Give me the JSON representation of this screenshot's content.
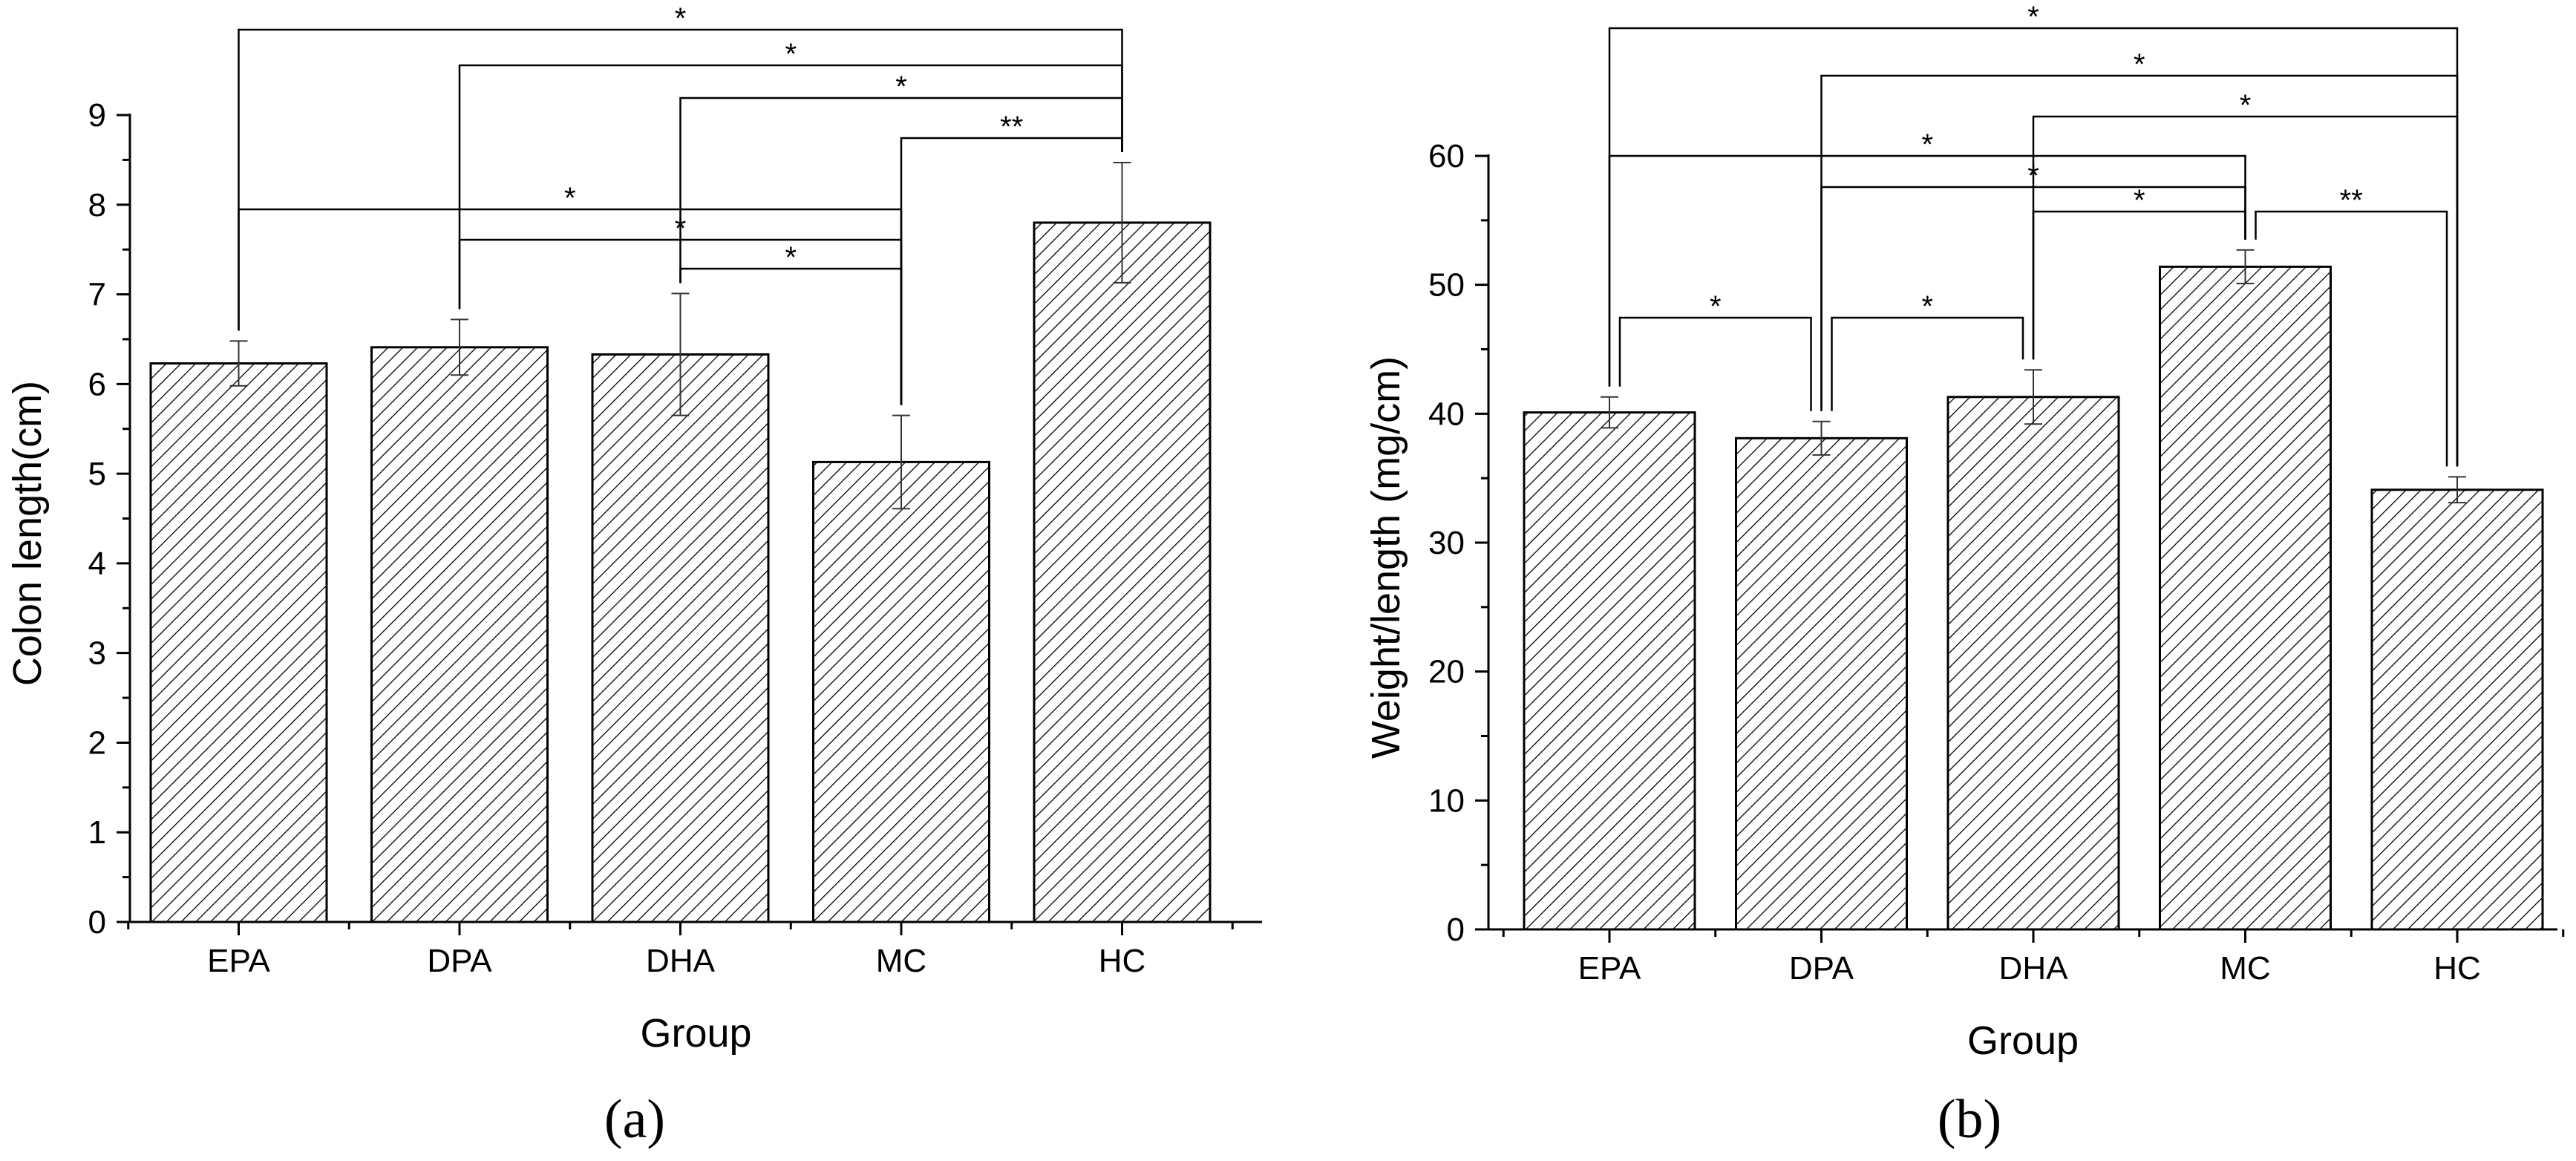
{
  "figure": {
    "panel_labels": [
      "(a)",
      "(b)"
    ]
  },
  "colors": {
    "bar_fill": "#ffffff",
    "bar_hatch": "#000000",
    "axis": "#000000",
    "background": "#ffffff"
  },
  "chart_data": [
    {
      "type": "bar",
      "panel": "(a)",
      "xlabel": "Group",
      "ylabel": "Colon length(cm)",
      "ylim": [
        0,
        9
      ],
      "yticks": [
        0,
        1,
        2,
        3,
        4,
        5,
        6,
        7,
        8,
        9
      ],
      "grid": false,
      "categories": [
        "EPA",
        "DPA",
        "DHA",
        "MC",
        "HC"
      ],
      "values": [
        6.23,
        6.41,
        6.33,
        5.13,
        7.8
      ],
      "errors": [
        0.25,
        0.31,
        0.68,
        0.52,
        0.67
      ],
      "pattern": "diagonal hatch",
      "significance": [
        {
          "from": "EPA",
          "to": "HC",
          "label": "*"
        },
        {
          "from": "DPA",
          "to": "HC",
          "label": "*"
        },
        {
          "from": "DHA",
          "to": "HC",
          "label": "*"
        },
        {
          "from": "MC",
          "to": "HC",
          "label": "**"
        },
        {
          "from": "EPA",
          "to": "MC",
          "label": "*"
        },
        {
          "from": "DPA",
          "to": "MC",
          "label": "*"
        },
        {
          "from": "DHA",
          "to": "MC",
          "label": "*"
        }
      ]
    },
    {
      "type": "bar",
      "panel": "(b)",
      "xlabel": "Group",
      "ylabel": "Weight/length (mg/cm)",
      "ylim": [
        0,
        60
      ],
      "yticks": [
        0,
        10,
        20,
        30,
        40,
        50,
        60
      ],
      "grid": false,
      "categories": [
        "EPA",
        "DPA",
        "DHA",
        "MC",
        "HC"
      ],
      "values": [
        40.1,
        38.1,
        41.3,
        51.4,
        34.1
      ],
      "errors": [
        1.2,
        1.3,
        2.1,
        1.3,
        1.0
      ],
      "pattern": "diagonal hatch",
      "significance": [
        {
          "from": "EPA",
          "to": "HC",
          "label": "*"
        },
        {
          "from": "DPA",
          "to": "HC",
          "label": "*"
        },
        {
          "from": "DHA",
          "to": "HC",
          "label": "*"
        },
        {
          "from": "EPA",
          "to": "MC",
          "label": "*"
        },
        {
          "from": "DPA",
          "to": "MC",
          "label": "*"
        },
        {
          "from": "DHA",
          "to": "MC",
          "label": "*"
        },
        {
          "from": "MC",
          "to": "HC",
          "label": "**"
        },
        {
          "from": "EPA",
          "to": "DPA",
          "label": "*"
        },
        {
          "from": "DPA",
          "to": "DHA",
          "label": "*"
        }
      ]
    }
  ]
}
